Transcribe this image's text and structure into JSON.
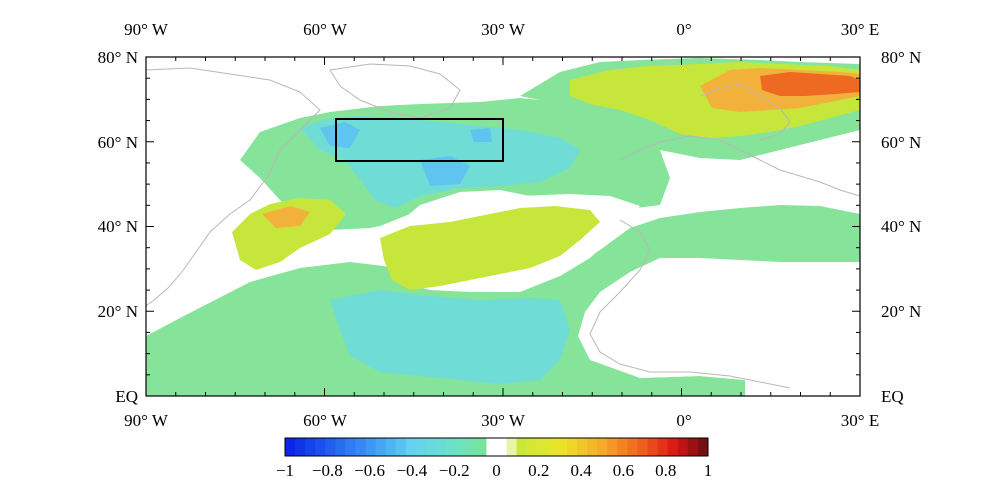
{
  "map": {
    "x_ticks": [
      "90° W",
      "60° W",
      "30° W",
      "0°",
      "30° E"
    ],
    "y_ticks": [
      "80° N",
      "60° N",
      "40° N",
      "20° N",
      "EQ"
    ],
    "colorbar": {
      "labels": [
        "−1",
        "−0.8",
        "−0.6",
        "−0.4",
        "−0.2",
        "0",
        "0.2",
        "0.4",
        "0.6",
        "0.8",
        "1"
      ]
    },
    "box_region": {
      "lon": [
        -58,
        -30
      ],
      "lat": [
        55,
        65
      ]
    },
    "colors": {
      "negative_strong": "#1a3cf0",
      "negative_mid": "#5fb8f5",
      "negative_weak": "#7fe0a8",
      "zero": "#ffffff",
      "positive_weak": "#c8e83a",
      "positive_mid": "#f0a030",
      "positive_strong": "#e82010",
      "extreme_positive": "#6b0e10"
    }
  }
}
